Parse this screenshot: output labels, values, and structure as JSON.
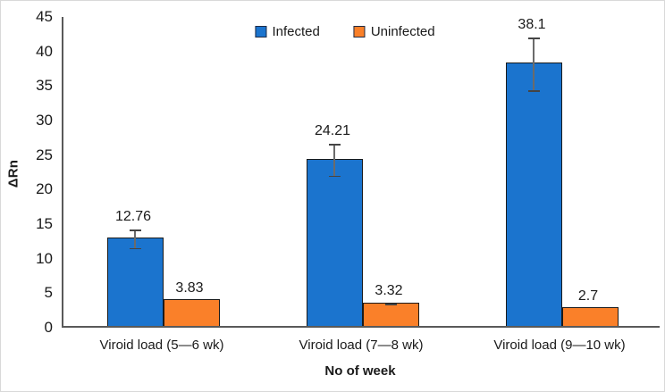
{
  "chart_data": {
    "type": "bar",
    "title": "",
    "xlabel": "No of week",
    "ylabel": "ΔRn",
    "ylim": [
      0,
      45
    ],
    "ytick_step": 5,
    "grid": false,
    "legend_position": "top-center",
    "categories": [
      "Viroid load (5—6 wk)",
      "Viroid load (7—8 wk)",
      "Viroid load (9—10 wk)"
    ],
    "series": [
      {
        "name": "Infected",
        "color": "#1b74ce",
        "values": [
          12.76,
          24.21,
          38.1
        ],
        "value_labels": [
          "12.76",
          "24.21",
          "38.1"
        ],
        "errors": [
          1.4,
          2.4,
          3.9
        ]
      },
      {
        "name": "Uninfected",
        "color": "#fa8029",
        "values": [
          3.83,
          3.32,
          2.7
        ],
        "value_labels": [
          "3.83",
          "3.32",
          "2.7"
        ],
        "errors": [
          0,
          0.15,
          0
        ]
      }
    ],
    "colors": {
      "axis": "#595959",
      "bar_border": "#1a1a1a",
      "error_bar": "#595959",
      "text": "#1a1a1a"
    }
  }
}
